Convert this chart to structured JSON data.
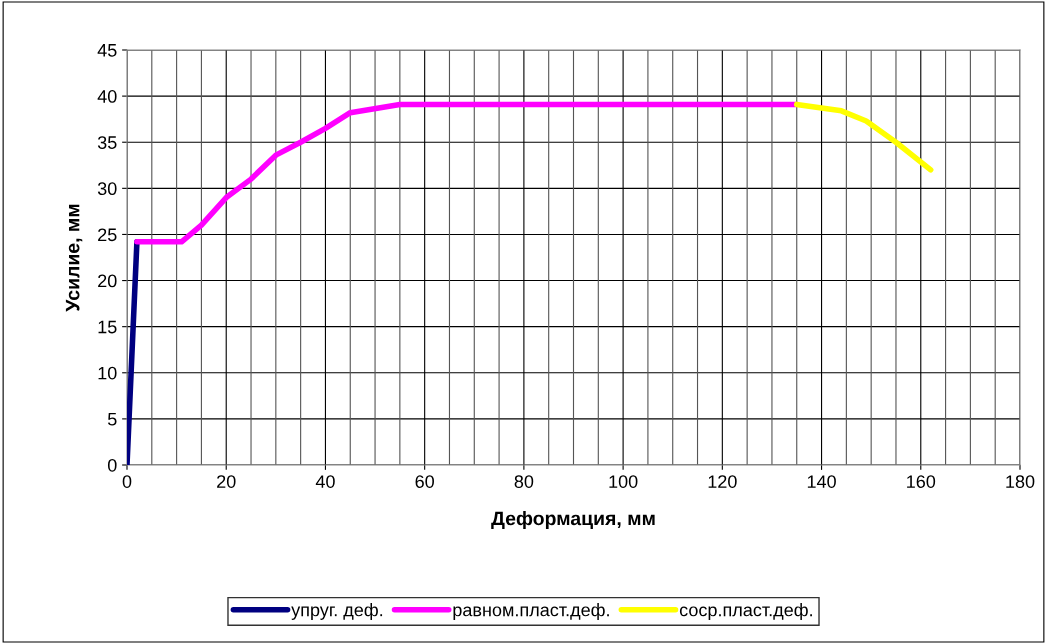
{
  "chart_data": {
    "type": "line",
    "xlabel": "Деформация, мм",
    "ylabel": "Усилие, мм",
    "xlim": [
      0,
      180
    ],
    "xticks": [
      0,
      20,
      40,
      60,
      80,
      100,
      120,
      140,
      160,
      180
    ],
    "ylim": [
      0,
      45
    ],
    "yticks": [
      0,
      5,
      10,
      15,
      20,
      25,
      30,
      35,
      40,
      45
    ],
    "grid": true,
    "legend": "bottom",
    "marker": "none",
    "line_style": "solid",
    "series": [
      {
        "name": "упруг. деф.",
        "color": "#000080",
        "x": [
          0,
          2
        ],
        "values": [
          0,
          24.2
        ]
      },
      {
        "name": "равном.пласт.деф.",
        "color": "#ff00ff",
        "x": [
          2,
          11,
          15,
          20,
          25,
          30,
          35,
          40,
          45,
          55,
          135
        ],
        "values": [
          24.2,
          24.2,
          26,
          29,
          31,
          33.6,
          35,
          36.5,
          38.2,
          39.1,
          39.1
        ]
      },
      {
        "name": "соср.пласт.деф.",
        "color": "#ffff00",
        "x": [
          135,
          140,
          144,
          149,
          155,
          162
        ],
        "values": [
          39.1,
          38.7,
          38.4,
          37.3,
          35,
          32
        ]
      }
    ]
  }
}
